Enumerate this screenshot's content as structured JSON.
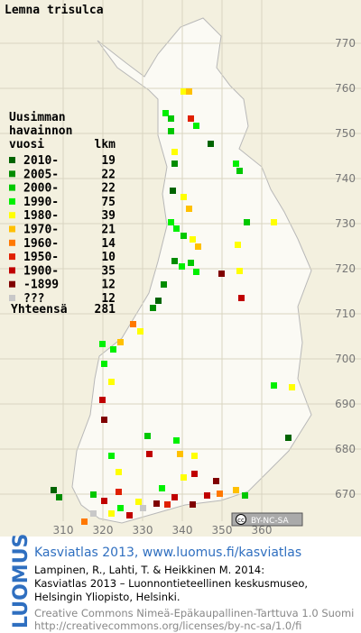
{
  "title": "Lemna trisulca",
  "legend": {
    "heading": [
      "Uusimman",
      "havainnon",
      "vuosi"
    ],
    "count_heading": "lkm",
    "rows": [
      {
        "label": "2010-",
        "count": 19,
        "color": "#006400"
      },
      {
        "label": "2005-",
        "count": 22,
        "color": "#008c00"
      },
      {
        "label": "2000-",
        "count": 22,
        "color": "#00c800"
      },
      {
        "label": "1990-",
        "count": 75,
        "color": "#00f000"
      },
      {
        "label": "1980-",
        "count": 39,
        "color": "#ffff00"
      },
      {
        "label": "1970-",
        "count": 21,
        "color": "#ffc000"
      },
      {
        "label": "1960-",
        "count": 14,
        "color": "#ff7800"
      },
      {
        "label": "1950-",
        "count": 10,
        "color": "#e02000"
      },
      {
        "label": "1900-",
        "count": 35,
        "color": "#c00000"
      },
      {
        "label": "-1899",
        "count": 12,
        "color": "#800000"
      },
      {
        "label": "???",
        "count": 12,
        "color": "#c8c8c8"
      }
    ],
    "total_label": "Yhteensä",
    "total": 281
  },
  "grid": {
    "x_labels": [
      310,
      320,
      330,
      340,
      350,
      360
    ],
    "y_labels": [
      670,
      680,
      690,
      700,
      710,
      720,
      730,
      740,
      750,
      760,
      770
    ]
  },
  "license_badge": "BY-NC-SA",
  "brand": "LUOMUS",
  "footer": {
    "heading": "Kasviatlas 2013, www.luomus.fi/kasviatlas",
    "citation": [
      "Lampinen, R., Lahti, T. & Heikkinen M. 2014:",
      "Kasviatlas 2013 – Luonnontieteellinen keskusmuseo,",
      "Helsingin Yliopisto, Helsinki."
    ],
    "license": [
      "Creative Commons Nimeä-Epäkaupallinen-Tarttuva 1.0 Suomi",
      "http://creativecommons.org/licenses/by-nc-sa/1.0/fi"
    ]
  }
}
